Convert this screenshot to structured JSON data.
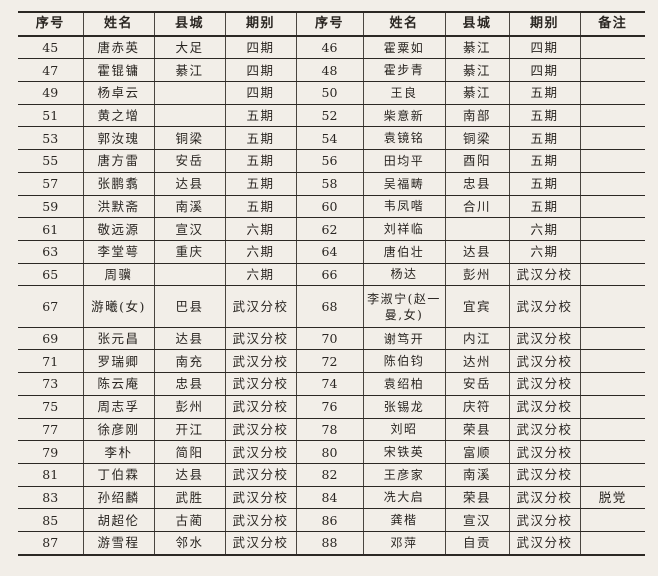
{
  "headers": [
    "序号",
    "姓名",
    "县城",
    "期别",
    "序号",
    "姓名",
    "县城",
    "期别",
    "备注"
  ],
  "rows": [
    {
      "n1": "45",
      "name1": "唐赤英",
      "county1": "大足",
      "term1": "四期",
      "n2": "46",
      "name2": "霍粟如",
      "county2": "綦江",
      "term2": "四期",
      "note": ""
    },
    {
      "n1": "47",
      "name1": "霍锟镛",
      "county1": "綦江",
      "term1": "四期",
      "n2": "48",
      "name2": "霍步青",
      "county2": "綦江",
      "term2": "四期",
      "note": ""
    },
    {
      "n1": "49",
      "name1": "杨卓云",
      "county1": "",
      "term1": "四期",
      "n2": "50",
      "name2": "王良",
      "county2": "綦江",
      "term2": "五期",
      "note": ""
    },
    {
      "n1": "51",
      "name1": "黄之增",
      "county1": "",
      "term1": "五期",
      "n2": "52",
      "name2": "柴意新",
      "county2": "南部",
      "term2": "五期",
      "note": ""
    },
    {
      "n1": "53",
      "name1": "郭汝瑰",
      "county1": "铜梁",
      "term1": "五期",
      "n2": "54",
      "name2": "袁镜铭",
      "county2": "铜梁",
      "term2": "五期",
      "note": ""
    },
    {
      "n1": "55",
      "name1": "唐方雷",
      "county1": "安岳",
      "term1": "五期",
      "n2": "56",
      "name2": "田均平",
      "county2": "酉阳",
      "term2": "五期",
      "note": ""
    },
    {
      "n1": "57",
      "name1": "张鹏翥",
      "county1": "达县",
      "term1": "五期",
      "n2": "58",
      "name2": "吴福畴",
      "county2": "忠县",
      "term2": "五期",
      "note": ""
    },
    {
      "n1": "59",
      "name1": "洪默斋",
      "county1": "南溪",
      "term1": "五期",
      "n2": "60",
      "name2": "韦凤喈",
      "county2": "合川",
      "term2": "五期",
      "note": ""
    },
    {
      "n1": "61",
      "name1": "敬远源",
      "county1": "宣汉",
      "term1": "六期",
      "n2": "62",
      "name2": "刘祥临",
      "county2": "",
      "term2": "六期",
      "note": ""
    },
    {
      "n1": "63",
      "name1": "李堂萼",
      "county1": "重庆",
      "term1": "六期",
      "n2": "64",
      "name2": "唐伯壮",
      "county2": "达县",
      "term2": "六期",
      "note": ""
    },
    {
      "n1": "65",
      "name1": "周骥",
      "county1": "",
      "term1": "六期",
      "n2": "66",
      "name2": "杨达",
      "county2": "彭州",
      "term2": "武汉分校",
      "note": ""
    },
    {
      "n1": "67",
      "name1": "游曦(女)",
      "county1": "巴县",
      "term1": "武汉分校",
      "n2": "68",
      "name2": "李淑宁(赵一曼,女)",
      "county2": "宜宾",
      "term2": "武汉分校",
      "note": ""
    },
    {
      "n1": "69",
      "name1": "张元昌",
      "county1": "达县",
      "term1": "武汉分校",
      "n2": "70",
      "name2": "谢笃开",
      "county2": "内江",
      "term2": "武汉分校",
      "note": ""
    },
    {
      "n1": "71",
      "name1": "罗瑞卿",
      "county1": "南充",
      "term1": "武汉分校",
      "n2": "72",
      "name2": "陈伯钧",
      "county2": "达州",
      "term2": "武汉分校",
      "note": ""
    },
    {
      "n1": "73",
      "name1": "陈云庵",
      "county1": "忠县",
      "term1": "武汉分校",
      "n2": "74",
      "name2": "袁绍柏",
      "county2": "安岳",
      "term2": "武汉分校",
      "note": ""
    },
    {
      "n1": "75",
      "name1": "周志孚",
      "county1": "彭州",
      "term1": "武汉分校",
      "n2": "76",
      "name2": "张锡龙",
      "county2": "庆符",
      "term2": "武汉分校",
      "note": ""
    },
    {
      "n1": "77",
      "name1": "徐彦刚",
      "county1": "开江",
      "term1": "武汉分校",
      "n2": "78",
      "name2": "刘昭",
      "county2": "荣县",
      "term2": "武汉分校",
      "note": ""
    },
    {
      "n1": "79",
      "name1": "李朴",
      "county1": "简阳",
      "term1": "武汉分校",
      "n2": "80",
      "name2": "宋铁英",
      "county2": "富顺",
      "term2": "武汉分校",
      "note": ""
    },
    {
      "n1": "81",
      "name1": "丁伯霖",
      "county1": "达县",
      "term1": "武汉分校",
      "n2": "82",
      "name2": "王彦家",
      "county2": "南溪",
      "term2": "武汉分校",
      "note": ""
    },
    {
      "n1": "83",
      "name1": "孙绍麟",
      "county1": "武胜",
      "term1": "武汉分校",
      "n2": "84",
      "name2": "冼大启",
      "county2": "荣县",
      "term2": "武汉分校",
      "note": "脱党"
    },
    {
      "n1": "85",
      "name1": "胡超伦",
      "county1": "古蔺",
      "term1": "武汉分校",
      "n2": "86",
      "name2": "龚楷",
      "county2": "宣汉",
      "term2": "武汉分校",
      "note": ""
    },
    {
      "n1": "87",
      "name1": "游雪程",
      "county1": "邻水",
      "term1": "武汉分校",
      "n2": "88",
      "name2": "邓萍",
      "county2": "自贡",
      "term2": "武汉分校",
      "note": ""
    }
  ]
}
